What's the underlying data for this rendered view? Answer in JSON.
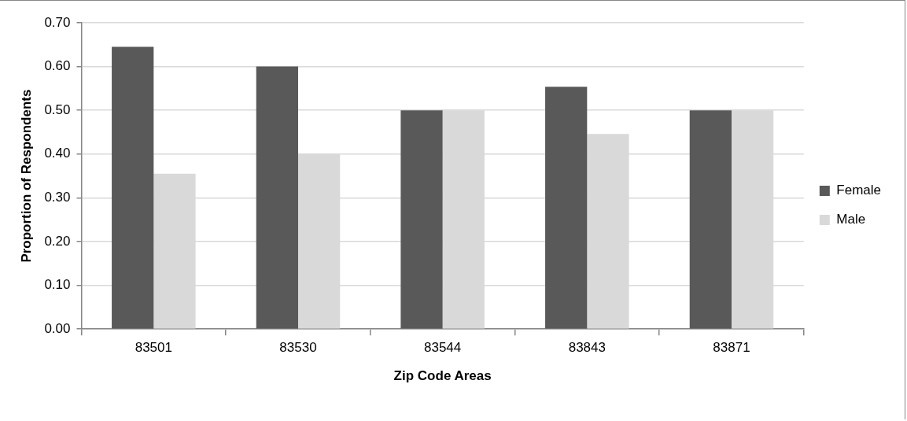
{
  "chart_data": {
    "type": "bar",
    "xlabel": "Zip Code Areas",
    "ylabel": "Proportion of Respondents",
    "categories": [
      "83501",
      "83530",
      "83544",
      "83843",
      "83871"
    ],
    "series": [
      {
        "name": "Female",
        "color": "#595959",
        "values": [
          0.645,
          0.6,
          0.5,
          0.554,
          0.5
        ]
      },
      {
        "name": "Male",
        "color": "#d9d9d9",
        "values": [
          0.355,
          0.4,
          0.5,
          0.446,
          0.5
        ]
      }
    ],
    "ylim": [
      0,
      0.7
    ],
    "yticks": [
      {
        "value": 0,
        "label": "0.00"
      },
      {
        "value": 0.1,
        "label": "0.10"
      },
      {
        "value": 0.2,
        "label": "0.20"
      },
      {
        "value": 0.3,
        "label": "0.30"
      },
      {
        "value": 0.4,
        "label": "0.40"
      },
      {
        "value": 0.5,
        "label": "0.50"
      },
      {
        "value": 0.6,
        "label": "0.60"
      },
      {
        "value": 0.7,
        "label": "0.70"
      }
    ],
    "grid": "y",
    "legend": "right"
  }
}
